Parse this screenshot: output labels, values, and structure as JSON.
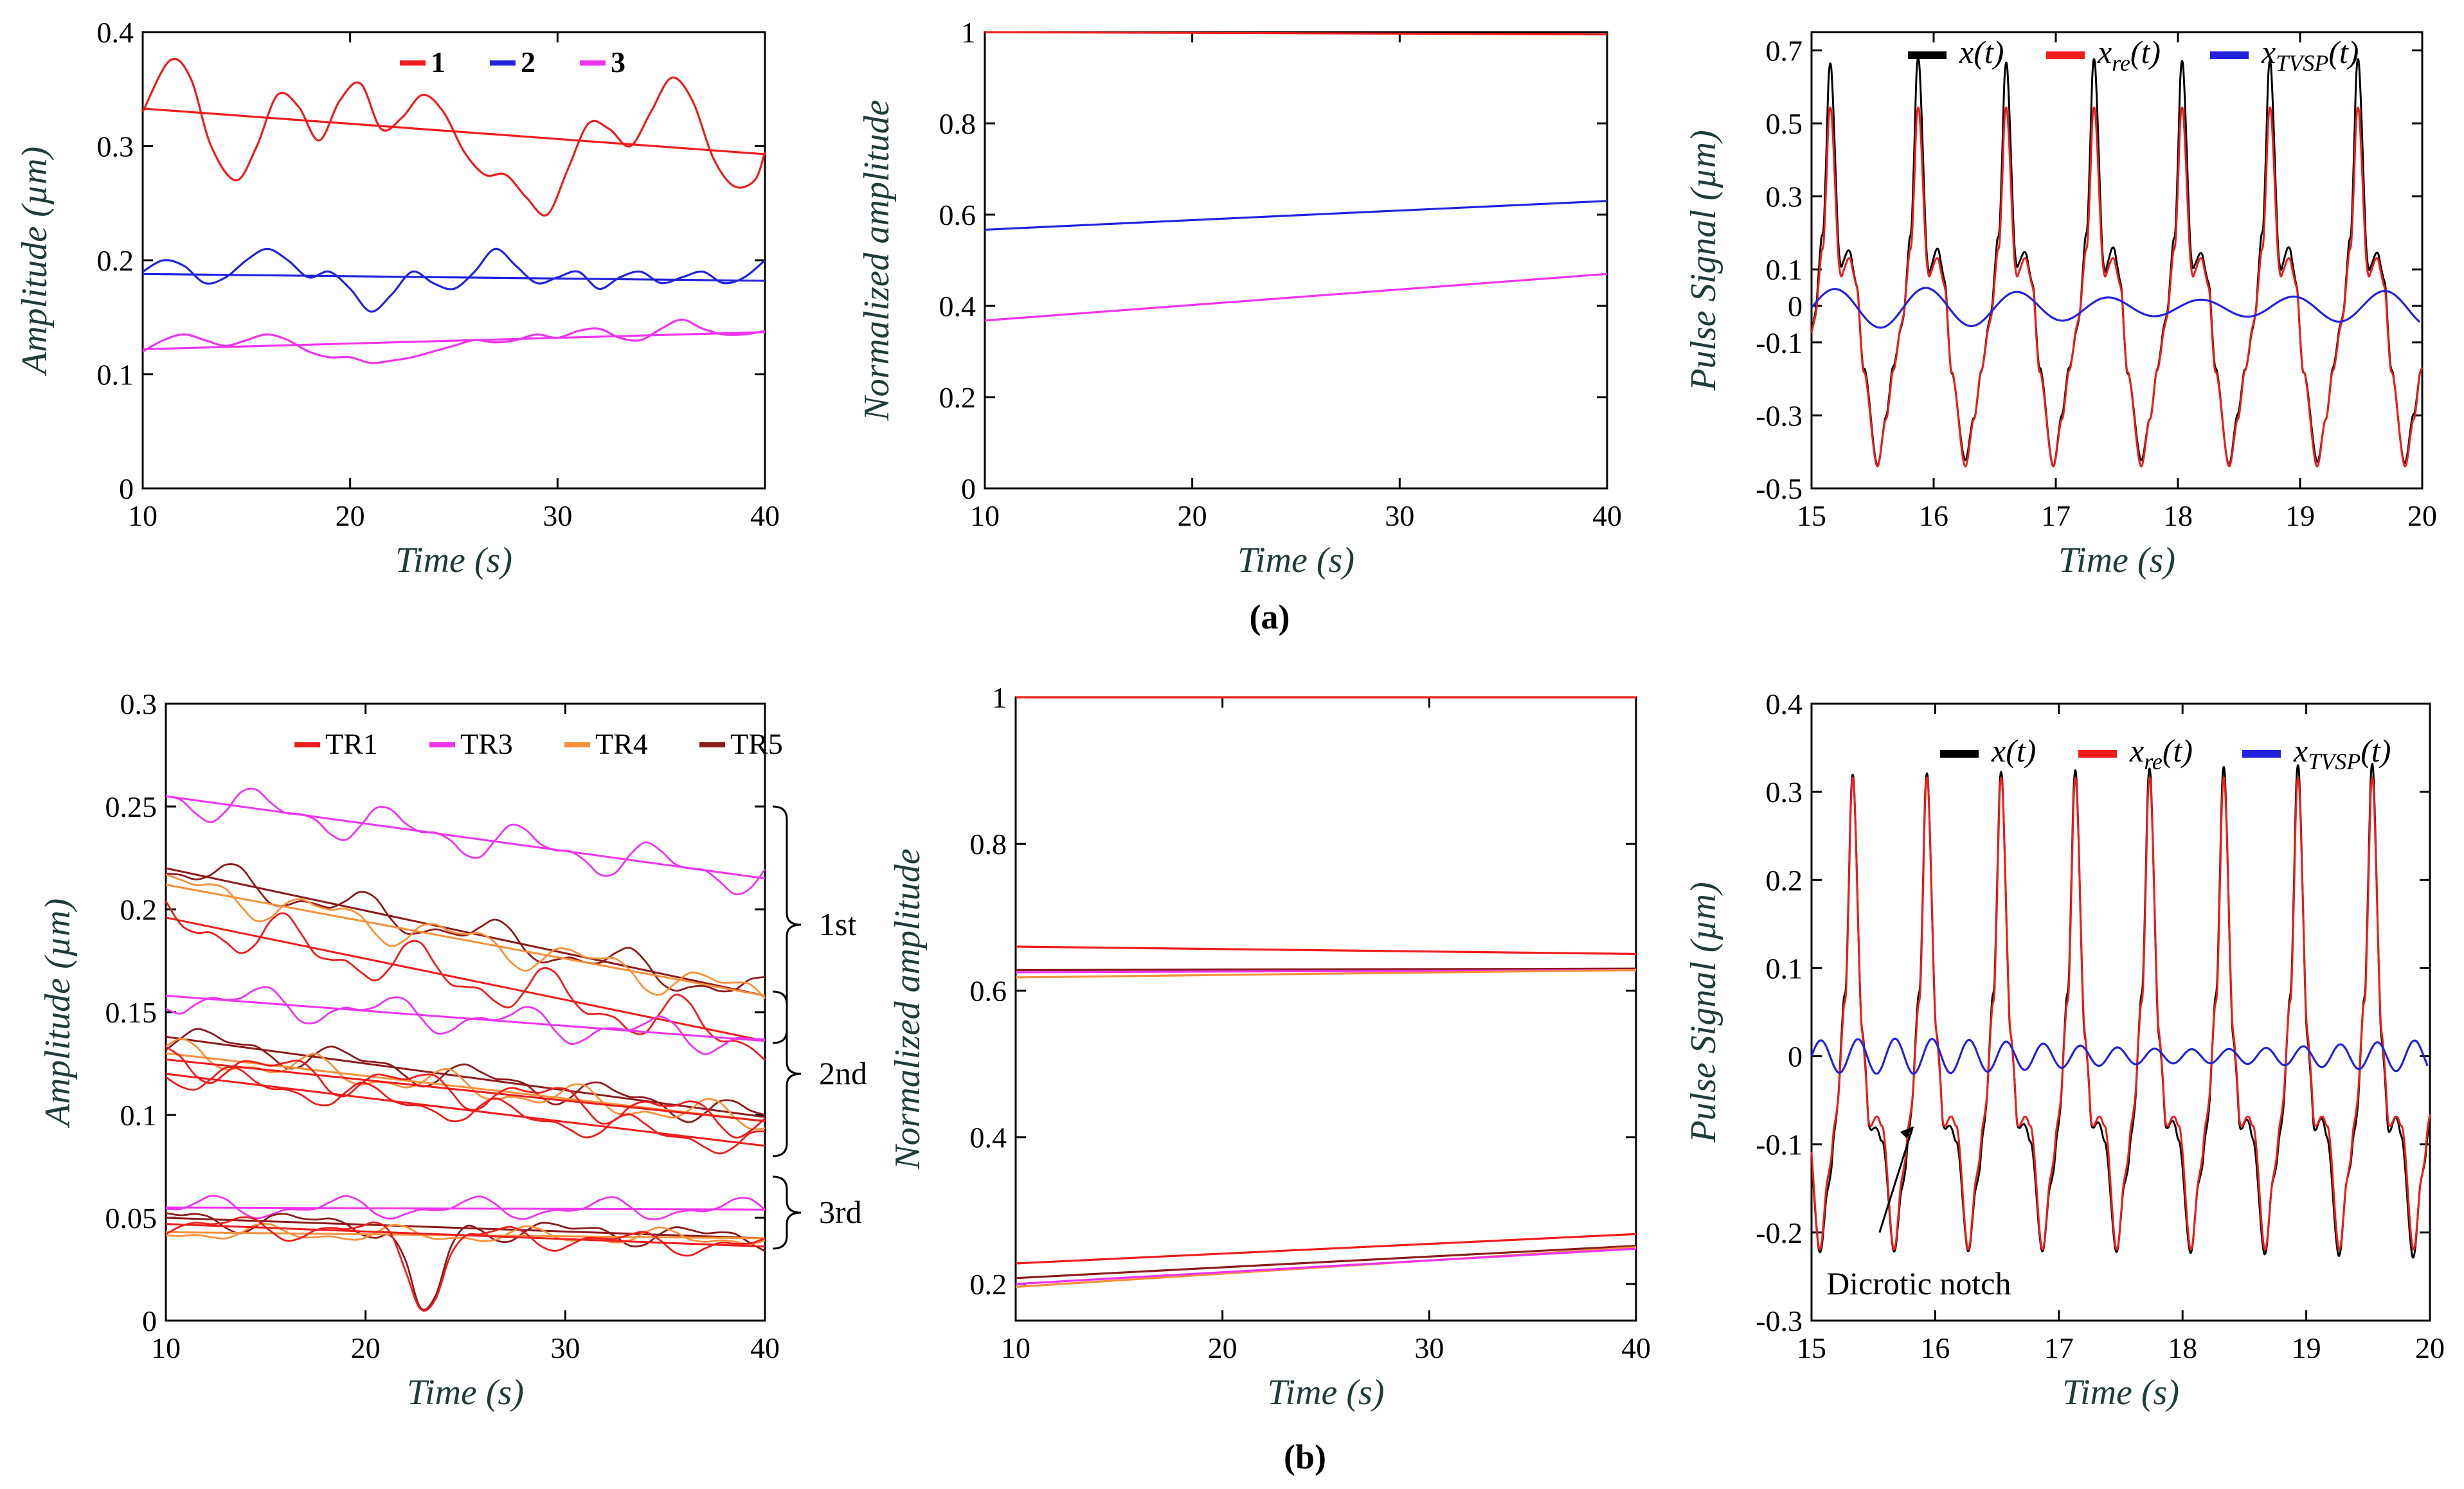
{
  "figure": {
    "caption_a": "(a)",
    "caption_b": "(b)"
  },
  "chart_data": [
    {
      "id": "a1",
      "type": "line",
      "xlabel": "Time (s)",
      "ylabel": "Amplitude (µm)",
      "xlim": [
        10,
        40
      ],
      "ylim": [
        0,
        0.4
      ],
      "xticks": [
        10,
        20,
        30,
        40
      ],
      "yticks": [
        0,
        0.1,
        0.2,
        0.3,
        0.4
      ],
      "ytick_labels": [
        "0",
        "0.1",
        "0.2",
        "0.3",
        "0.4"
      ],
      "legend": [
        {
          "label": "1",
          "color": "#ee1c1c"
        },
        {
          "label": "2",
          "color": "#2222dd"
        },
        {
          "label": "3",
          "color": "#ee33ee"
        }
      ],
      "series": [
        {
          "name": "1",
          "color": "#ee1c1c",
          "x": [
            10,
            11.3,
            12.3,
            13.3,
            14.5,
            15.5,
            16.5,
            17.5,
            18.5,
            19.5,
            20.5,
            21.5,
            22.5,
            23.5,
            24.5,
            25.5,
            26.5,
            27.5,
            28.5,
            29.5,
            30.5,
            31.5,
            32.5,
            33.5,
            34.5,
            35.5,
            36.5,
            37.5,
            38.5,
            39.5,
            40
          ],
          "y": [
            0.33,
            0.375,
            0.36,
            0.3,
            0.27,
            0.3,
            0.345,
            0.335,
            0.305,
            0.34,
            0.355,
            0.315,
            0.325,
            0.345,
            0.33,
            0.295,
            0.275,
            0.275,
            0.255,
            0.24,
            0.28,
            0.32,
            0.315,
            0.3,
            0.33,
            0.36,
            0.34,
            0.29,
            0.265,
            0.27,
            0.295
          ]
        },
        {
          "name": "1 trend",
          "color": "#ee1c1c",
          "x": [
            10,
            40
          ],
          "y": [
            0.333,
            0.293
          ]
        },
        {
          "name": "2",
          "color": "#2222dd",
          "x": [
            10,
            11,
            12,
            13,
            14,
            15,
            16,
            17,
            18,
            19,
            20,
            21,
            22,
            23,
            24,
            25,
            26,
            27,
            28,
            29,
            30,
            31,
            32,
            33,
            34,
            35,
            36,
            37,
            38,
            39,
            40
          ],
          "y": [
            0.19,
            0.2,
            0.195,
            0.18,
            0.185,
            0.2,
            0.21,
            0.2,
            0.185,
            0.19,
            0.175,
            0.155,
            0.17,
            0.19,
            0.18,
            0.175,
            0.19,
            0.21,
            0.195,
            0.18,
            0.185,
            0.19,
            0.175,
            0.185,
            0.19,
            0.18,
            0.185,
            0.19,
            0.18,
            0.185,
            0.2
          ]
        },
        {
          "name": "2 trend",
          "color": "#2222dd",
          "x": [
            10,
            40
          ],
          "y": [
            0.188,
            0.182
          ]
        },
        {
          "name": "3",
          "color": "#ee33ee",
          "x": [
            10,
            11,
            12,
            13,
            14,
            15,
            16,
            17,
            18,
            19,
            20,
            21,
            22,
            23,
            24,
            25,
            26,
            27,
            28,
            29,
            30,
            31,
            32,
            33,
            34,
            35,
            36,
            37,
            38,
            39,
            40
          ],
          "y": [
            0.12,
            0.13,
            0.135,
            0.13,
            0.125,
            0.13,
            0.135,
            0.13,
            0.12,
            0.115,
            0.115,
            0.11,
            0.112,
            0.115,
            0.12,
            0.125,
            0.13,
            0.128,
            0.13,
            0.135,
            0.132,
            0.138,
            0.14,
            0.132,
            0.13,
            0.14,
            0.148,
            0.14,
            0.135,
            0.135,
            0.138
          ]
        },
        {
          "name": "3 trend",
          "color": "#ee33ee",
          "x": [
            10,
            40
          ],
          "y": [
            0.122,
            0.137
          ]
        }
      ]
    },
    {
      "id": "a2",
      "type": "line",
      "xlabel": "Time (s)",
      "ylabel": "Normalized amplitude",
      "xlim": [
        10,
        40
      ],
      "ylim": [
        0,
        1
      ],
      "xticks": [
        10,
        20,
        30,
        40
      ],
      "yticks": [
        0,
        0.2,
        0.4,
        0.6,
        0.8,
        1
      ],
      "ytick_labels": [
        "0",
        "0.2",
        "0.4",
        "0.6",
        "0.8",
        "1"
      ],
      "legend": [],
      "series": [
        {
          "name": "1",
          "color": "#ee1c1c",
          "x": [
            10,
            40
          ],
          "y": [
            1.0,
            0.995
          ]
        },
        {
          "name": "2",
          "color": "#2222dd",
          "x": [
            10,
            40
          ],
          "y": [
            0.567,
            0.63
          ]
        },
        {
          "name": "3",
          "color": "#ee33ee",
          "x": [
            10,
            40
          ],
          "y": [
            0.368,
            0.47
          ]
        }
      ]
    },
    {
      "id": "a3",
      "type": "line",
      "xlabel": "Time (s)",
      "ylabel": "Pulse Signal (µm)",
      "xlim": [
        15,
        20
      ],
      "ylim": [
        -0.5,
        0.75
      ],
      "xticks": [
        15,
        16,
        17,
        18,
        19,
        20
      ],
      "yticks": [
        -0.5,
        -0.3,
        -0.1,
        0,
        0.1,
        0.3,
        0.5,
        0.7
      ],
      "ytick_labels": [
        "-0.5",
        "-0.3",
        "-0.1",
        "0",
        "0.1",
        "0.3",
        "0.5",
        "0.7"
      ],
      "legend": [
        {
          "label": "x(t)",
          "base": "x",
          "sub": "",
          "color": "#000000"
        },
        {
          "label": "x_re(t)",
          "base": "x",
          "sub": "re",
          "color": "#ee1c1c"
        },
        {
          "label": "x_TVSP(t)",
          "base": "x",
          "sub": "TVSP",
          "color": "#2222dd"
        }
      ],
      "synthetic": {
        "period": 0.72,
        "peak_x": 0.62,
        "start": 15.0,
        "black_amp": [
          0.68,
          0.6,
          0.14,
          -0.43
        ],
        "red_amp": [
          0.55,
          0.58,
          0.12,
          -0.44
        ],
        "blue_amp": 0.055,
        "blue_period": 0.75
      }
    },
    {
      "id": "b1",
      "type": "line",
      "xlabel": "Time (s)",
      "ylabel": "Amplitude (µm)",
      "xlim": [
        10,
        40
      ],
      "ylim": [
        0,
        0.3
      ],
      "xticks": [
        10,
        20,
        30,
        40
      ],
      "yticks": [
        0,
        0.05,
        0.1,
        0.15,
        0.2,
        0.25,
        0.3
      ],
      "ytick_labels": [
        "0",
        "0.05",
        "0.1",
        "0.15",
        "0.2",
        "0.25",
        "0.3"
      ],
      "legend": [
        {
          "label": "TR1",
          "color": "#ee1c1c"
        },
        {
          "label": "TR3",
          "color": "#ee33ee"
        },
        {
          "label": "TR4",
          "color": "#f5913a"
        },
        {
          "label": "TR5",
          "color": "#8b1a1a"
        }
      ],
      "brackets": [
        {
          "label": "1st",
          "from": 0.135,
          "to": 0.25
        },
        {
          "label": "2nd",
          "from": 0.08,
          "to": 0.16
        },
        {
          "label": "3rd",
          "from": 0.035,
          "to": 0.07
        }
      ],
      "series": [
        {
          "name": "TR3 1st",
          "color": "#ee33ee",
          "trend": [
            0.255,
            0.215
          ],
          "wiggle": 0.007
        },
        {
          "name": "TR5 1st",
          "color": "#8b1a1a",
          "trend": [
            0.22,
            0.158
          ],
          "wiggle": 0.006
        },
        {
          "name": "TR4 1st",
          "color": "#f5913a",
          "trend": [
            0.212,
            0.158
          ],
          "wiggle": 0.006
        },
        {
          "name": "TR1 1st",
          "color": "#ee1c1c",
          "trend": [
            0.196,
            0.136
          ],
          "wiggle": 0.009
        },
        {
          "name": "TR3 2nd",
          "color": "#ee33ee",
          "trend": [
            0.158,
            0.136
          ],
          "wiggle": 0.006
        },
        {
          "name": "TR5 2nd",
          "color": "#8b1a1a",
          "trend": [
            0.138,
            0.099
          ],
          "wiggle": 0.005
        },
        {
          "name": "TR4 2nd",
          "color": "#f5913a",
          "trend": [
            0.13,
            0.097
          ],
          "wiggle": 0.005
        },
        {
          "name": "TR1 2nd a",
          "color": "#ee1c1c",
          "trend": [
            0.127,
            0.097
          ],
          "wiggle": 0.006
        },
        {
          "name": "TR1 2nd b",
          "color": "#ee1c1c",
          "trend": [
            0.12,
            0.085
          ],
          "wiggle": 0.005
        },
        {
          "name": "TR3 3rd",
          "color": "#ee33ee",
          "trend": [
            0.055,
            0.054
          ],
          "wiggle": 0.004
        },
        {
          "name": "TR5 3rd",
          "color": "#8b1a1a",
          "trend": [
            0.05,
            0.04
          ],
          "wiggle": 0.004,
          "dip": true
        },
        {
          "name": "TR4 3rd",
          "color": "#f5913a",
          "trend": [
            0.043,
            0.04
          ],
          "wiggle": 0.003
        },
        {
          "name": "TR1 3rd",
          "color": "#ee1c1c",
          "trend": [
            0.047,
            0.036
          ],
          "wiggle": 0.004,
          "dip": true
        }
      ]
    },
    {
      "id": "b2",
      "type": "line",
      "xlabel": "Time (s)",
      "ylabel": "Normalized amplitude",
      "xlim": [
        10,
        40
      ],
      "ylim": [
        0.15,
        1
      ],
      "xticks": [
        10,
        20,
        30,
        40
      ],
      "yticks": [
        0.2,
        0.4,
        0.6,
        0.8,
        1
      ],
      "ytick_labels": [
        "0.2",
        "0.4",
        "0.6",
        "0.8",
        "1"
      ],
      "legend": [],
      "series": [
        {
          "name": "1st",
          "color": "#ee1c1c",
          "x": [
            10,
            40
          ],
          "y": [
            1.0,
            1.0
          ]
        },
        {
          "name": "TR1 2nd",
          "color": "#ee1c1c",
          "x": [
            10,
            40
          ],
          "y": [
            0.66,
            0.65
          ]
        },
        {
          "name": "TR5 2nd",
          "color": "#8b1a1a",
          "x": [
            10,
            40
          ],
          "y": [
            0.628,
            0.63
          ]
        },
        {
          "name": "TR3 2nd",
          "color": "#ee33ee",
          "x": [
            10,
            40
          ],
          "y": [
            0.625,
            0.628
          ]
        },
        {
          "name": "TR4 2nd",
          "color": "#f5913a",
          "x": [
            10,
            40
          ],
          "y": [
            0.618,
            0.628
          ]
        },
        {
          "name": "TR1 3rd",
          "color": "#ee1c1c",
          "x": [
            10,
            40
          ],
          "y": [
            0.228,
            0.268
          ]
        },
        {
          "name": "TR5 3rd",
          "color": "#8b1a1a",
          "x": [
            10,
            40
          ],
          "y": [
            0.208,
            0.252
          ]
        },
        {
          "name": "TR4 3rd",
          "color": "#f5913a",
          "x": [
            10,
            40
          ],
          "y": [
            0.196,
            0.25
          ]
        },
        {
          "name": "TR3 3rd",
          "color": "#ee33ee",
          "x": [
            10,
            40
          ],
          "y": [
            0.2,
            0.248
          ]
        }
      ]
    },
    {
      "id": "b3",
      "type": "line",
      "xlabel": "Time (s)",
      "ylabel": "Pulse Signal (µm)",
      "xlim": [
        15,
        20
      ],
      "ylim": [
        -0.3,
        0.4
      ],
      "xticks": [
        15,
        16,
        17,
        18,
        19,
        20
      ],
      "yticks": [
        -0.3,
        -0.2,
        -0.1,
        0,
        0.1,
        0.2,
        0.3,
        0.4
      ],
      "ytick_labels": [
        "-0.3",
        "-0.2",
        "-0.1",
        "0",
        "0.1",
        "0.2",
        "0.3",
        "0.4"
      ],
      "legend": [
        {
          "label": "x(t)",
          "base": "x",
          "sub": "",
          "color": "#000000"
        },
        {
          "label": "x_re(t)",
          "base": "x",
          "sub": "re",
          "color": "#ee1c1c"
        },
        {
          "label": "x_TVSP(t)",
          "base": "x",
          "sub": "TVSP",
          "color": "#2222dd"
        }
      ],
      "annotation": "Dicrotic notch",
      "synthetic": {
        "period": 0.6,
        "peak_x": 0.22,
        "start": 15.0,
        "black_amp": [
          0.33,
          0.32,
          -0.09,
          -0.23
        ],
        "red_amp": [
          0.32,
          0.31,
          -0.08,
          -0.22
        ],
        "blue_amp": 0.02,
        "blue_period": 0.3
      }
    }
  ]
}
